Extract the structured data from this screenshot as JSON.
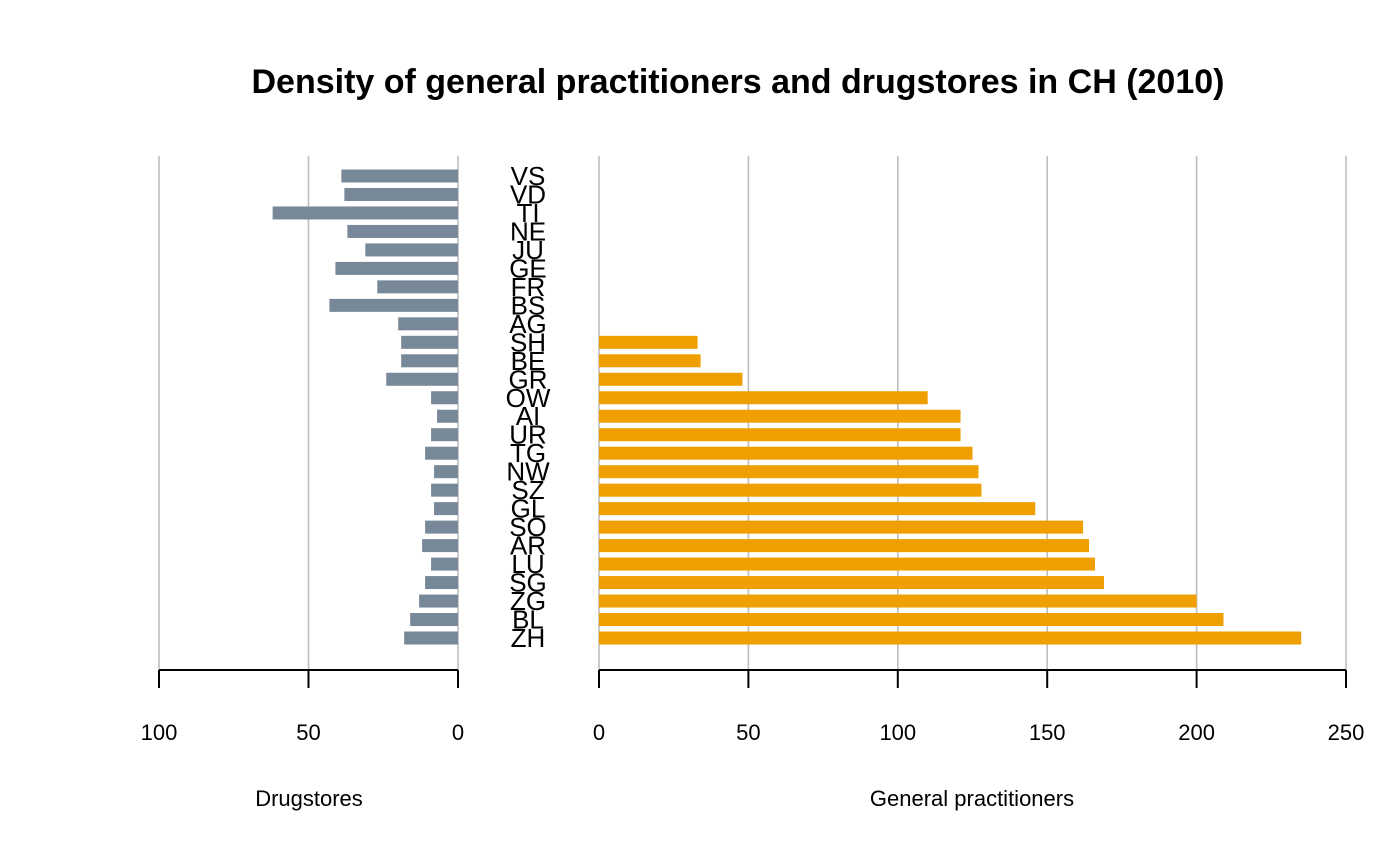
{
  "chart_data": {
    "type": "bar",
    "orientation": "horizontal",
    "layout": "back-to-back",
    "title": "Density of general practitioners and drugstores in CH (2010)",
    "categories": [
      "VS",
      "VD",
      "TI",
      "NE",
      "JU",
      "GE",
      "FR",
      "BS",
      "AG",
      "SH",
      "BE",
      "GR",
      "OW",
      "AI",
      "UR",
      "TG",
      "NW",
      "SZ",
      "GL",
      "SO",
      "AR",
      "LU",
      "SG",
      "ZG",
      "BL",
      "ZH"
    ],
    "colors": {
      "drugstores": "#778899",
      "practitioners": "#F09F00"
    },
    "grid": true,
    "panels": [
      {
        "name": "Drugstores",
        "xlabel": "Drugstores",
        "direction": "reversed",
        "xlim": [
          0,
          100
        ],
        "ticks": [
          100,
          50,
          0
        ],
        "values": [
          39,
          38,
          62,
          37,
          31,
          41,
          27,
          43,
          20,
          19,
          19,
          24,
          9,
          7,
          9,
          11,
          8,
          9,
          8,
          11,
          12,
          9,
          11,
          13,
          16,
          18
        ]
      },
      {
        "name": "General practitioners",
        "xlabel": "General practitioners",
        "direction": "normal",
        "xlim": [
          0,
          250
        ],
        "ticks": [
          0,
          50,
          100,
          150,
          200,
          250
        ],
        "values": [
          null,
          null,
          null,
          null,
          null,
          null,
          null,
          null,
          null,
          33,
          34,
          48,
          110,
          121,
          121,
          125,
          127,
          128,
          146,
          162,
          164,
          166,
          169,
          200,
          209,
          235
        ]
      }
    ]
  }
}
